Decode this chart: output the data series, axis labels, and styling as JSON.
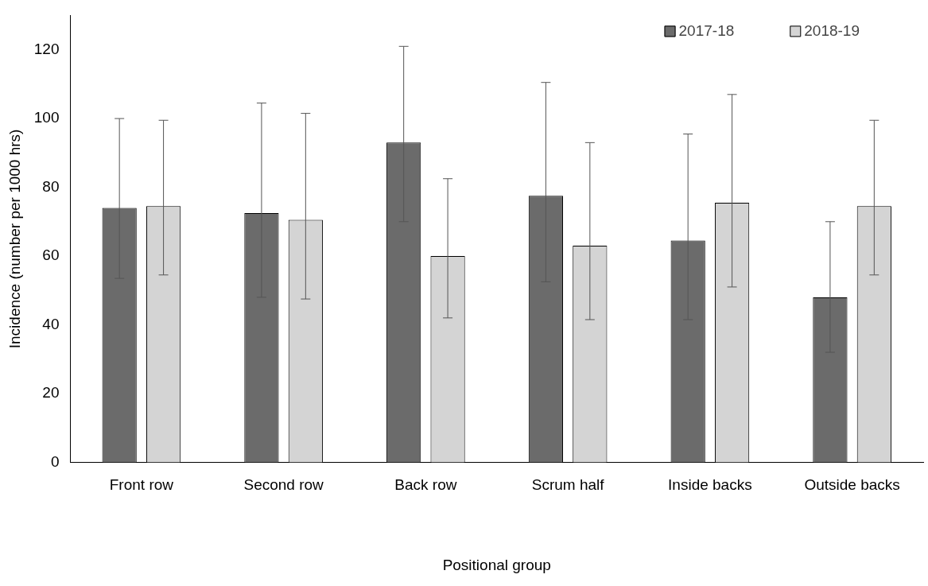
{
  "chart_data": {
    "type": "bar",
    "xlabel": "Positional group",
    "ylabel": "Incidence (number per 1000 hrs)",
    "categories": [
      "Front row",
      "Second row",
      "Back row",
      "Scrum half",
      "Inside backs",
      "Outside backs"
    ],
    "series": [
      {
        "name": "2017-18",
        "color": "#6b6b6b",
        "values": [
          74,
          72.5,
          93,
          77.5,
          64.5,
          48
        ],
        "errors": [
          [
            53.5,
            100
          ],
          [
            48,
            104.5
          ],
          [
            70,
            121
          ],
          [
            52.5,
            110.5
          ],
          [
            41.5,
            95.5
          ],
          [
            32,
            70
          ]
        ]
      },
      {
        "name": "2018-19",
        "color": "#d4d4d4",
        "values": [
          74.5,
          70.5,
          60,
          63,
          75.5,
          74.5
        ],
        "errors": [
          [
            54.5,
            99.5
          ],
          [
            47.5,
            101.5
          ],
          [
            42,
            82.5
          ],
          [
            41.5,
            93
          ],
          [
            51,
            107
          ],
          [
            54.5,
            99.5
          ]
        ]
      }
    ],
    "ylim": [
      0,
      130
    ],
    "yticks": [
      0,
      20,
      40,
      60,
      80,
      100,
      120
    ],
    "grid": false,
    "legend": "top right"
  }
}
